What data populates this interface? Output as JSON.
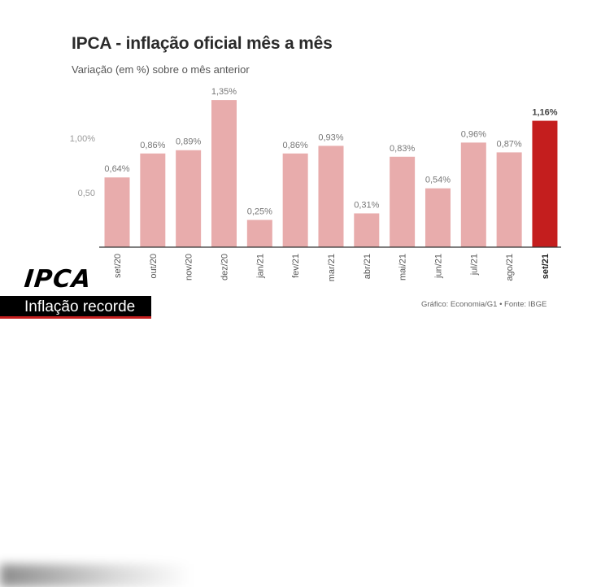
{
  "chart_data": {
    "type": "bar",
    "title": "IPCA - inflação oficial mês a mês",
    "subtitle": "Variação (em %) sobre o mês anterior",
    "xlabel": "",
    "ylabel": "",
    "ylim": [
      0,
      1.35
    ],
    "yticks": [
      0.5,
      1.0
    ],
    "ytick_labels": [
      "0,50",
      "1,00%"
    ],
    "grid": false,
    "categories": [
      "set/20",
      "out/20",
      "nov/20",
      "dez/20",
      "jan/21",
      "fev/21",
      "mar/21",
      "abr/21",
      "mai/21",
      "jun/21",
      "jul/21",
      "ago/21",
      "set/21"
    ],
    "values": [
      0.64,
      0.86,
      0.89,
      1.35,
      0.25,
      0.86,
      0.93,
      0.31,
      0.83,
      0.54,
      0.96,
      0.87,
      1.16
    ],
    "value_labels": [
      "0,64%",
      "0,86%",
      "0,89%",
      "1,35%",
      "0,25%",
      "0,86%",
      "0,93%",
      "0,31%",
      "0,83%",
      "0,54%",
      "0,96%",
      "0,87%",
      "1,16%"
    ],
    "bar_color": "#e8acac",
    "highlight_index": 12,
    "highlight_color": "#c41e1e"
  },
  "source": "Gráfico: Economia/G1 • Fonte: IBGE",
  "banner": {
    "label": "IPCA",
    "headline": "Inflação recorde"
  }
}
